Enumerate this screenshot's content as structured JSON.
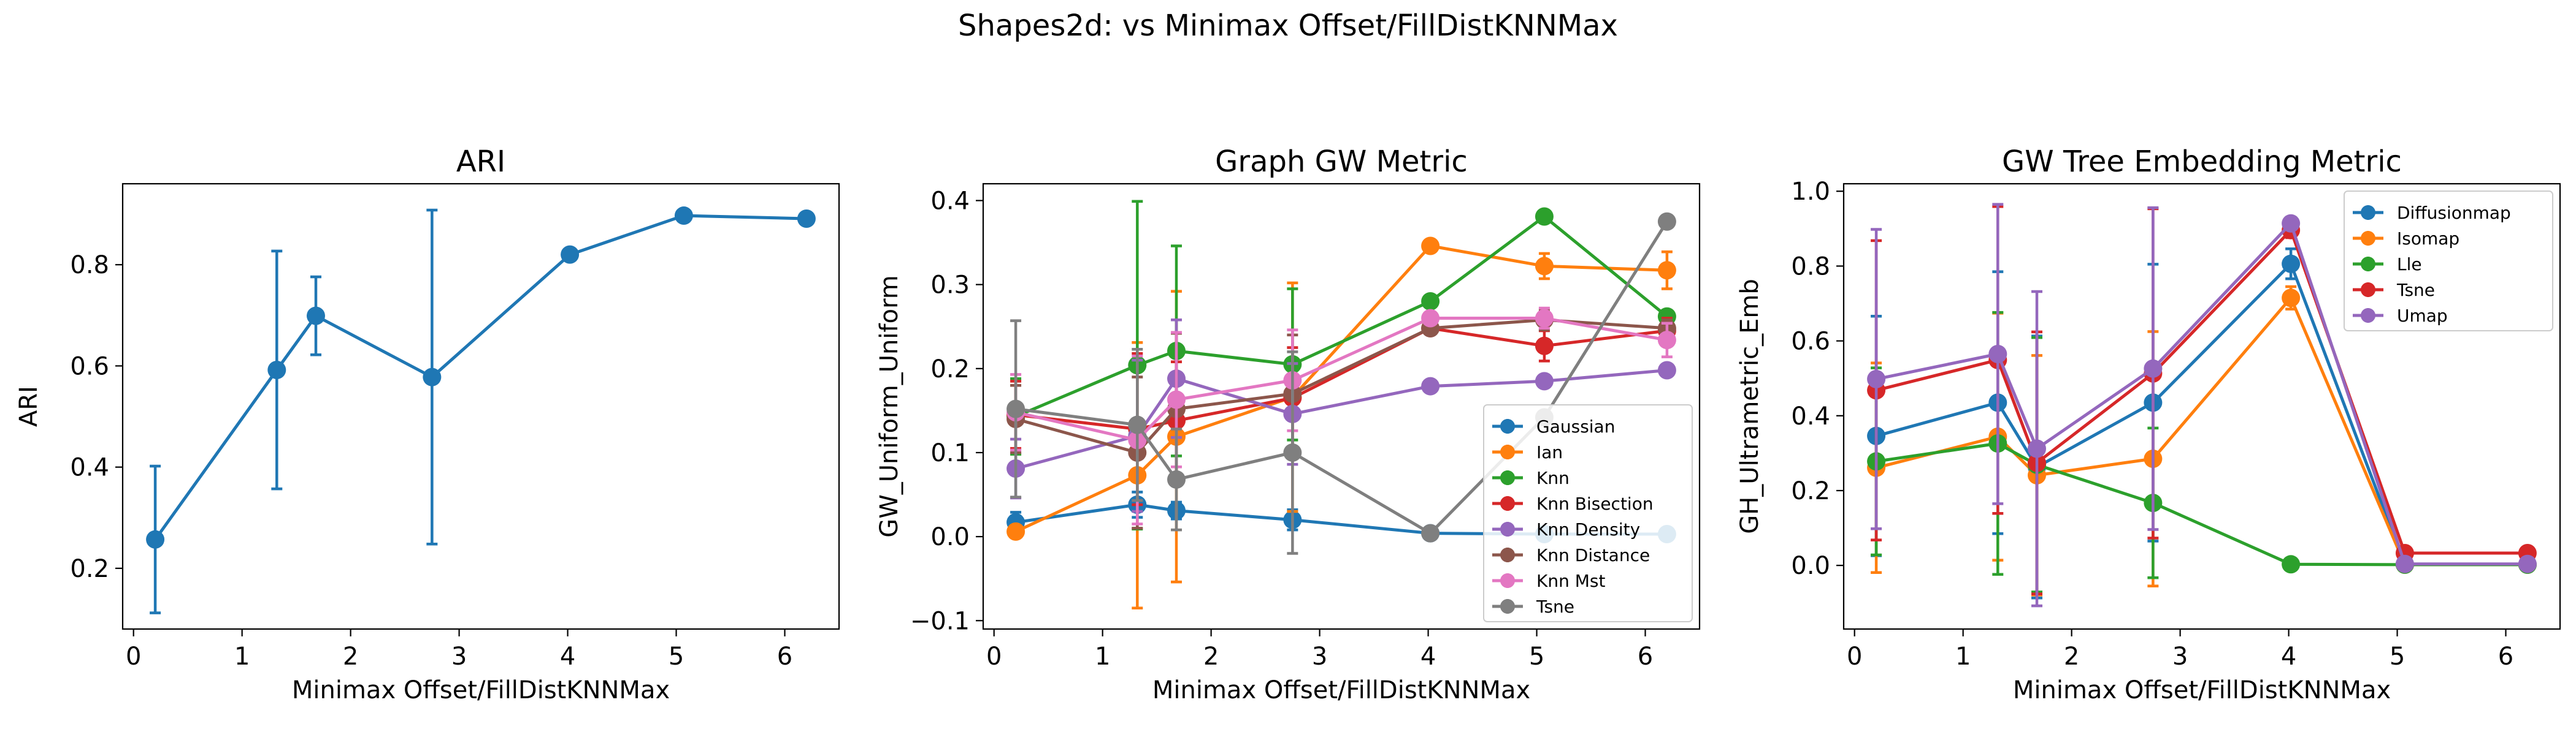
{
  "figure": {
    "title": "Shapes2d: vs Minimax Offset/FillDistKNNMax"
  },
  "chart_data": [
    {
      "type": "line",
      "title": "ARI",
      "xlabel": "Minimax Offset/FillDistKNNMax",
      "ylabel": "ARI",
      "xlim": [
        -0.1,
        6.5
      ],
      "ylim": [
        0.08,
        0.96
      ],
      "xticks": [
        0,
        1,
        2,
        3,
        4,
        5,
        6
      ],
      "yticks": [
        0.2,
        0.4,
        0.6,
        0.8
      ],
      "yticklabels": [
        "0.2",
        "0.4",
        "0.6",
        "0.8"
      ],
      "legend": null,
      "series": [
        {
          "color": "#1f77b4",
          "x": [
            0.2,
            1.32,
            1.68,
            2.75,
            4.02,
            5.07,
            6.2
          ],
          "y": [
            0.257,
            0.592,
            0.699,
            0.578,
            0.82,
            0.897,
            0.891
          ],
          "err": [
            0.145,
            0.235,
            0.077,
            0.33,
            0,
            0,
            0
          ]
        }
      ]
    },
    {
      "type": "line",
      "title": "Graph GW Metric",
      "xlabel": "Minimax Offset/FillDistKNNMax",
      "ylabel": "GW_Uniform_Uniform",
      "xlim": [
        -0.1,
        6.5
      ],
      "ylim": [
        -0.11,
        0.42
      ],
      "xticks": [
        0,
        1,
        2,
        3,
        4,
        5,
        6
      ],
      "yticks": [
        -0.1,
        0.0,
        0.1,
        0.2,
        0.3,
        0.4
      ],
      "yticklabels": [
        "−0.1",
        "0.0",
        "0.1",
        "0.2",
        "0.3",
        "0.4"
      ],
      "legend": "lower-right",
      "series": [
        {
          "name": "Gaussian",
          "color": "#1f77b4",
          "x": [
            0.2,
            1.32,
            1.68,
            2.75,
            4.02,
            5.07,
            6.2
          ],
          "y": [
            0.017,
            0.038,
            0.031,
            0.02,
            0.004,
            0.003,
            0.003
          ],
          "err": [
            0.012,
            0.015,
            0.01,
            0.012,
            0,
            0,
            0
          ]
        },
        {
          "name": "Ian",
          "color": "#ff7f0e",
          "x": [
            0.2,
            1.32,
            1.68,
            2.75,
            4.02,
            5.07,
            6.2
          ],
          "y": [
            0.006,
            0.073,
            0.119,
            0.166,
            0.346,
            0.322,
            0.317
          ],
          "err": [
            0.005,
            0.158,
            0.173,
            0.136,
            0,
            0.015,
            0.022
          ]
        },
        {
          "name": "Knn",
          "color": "#2ca02c",
          "x": [
            0.2,
            1.32,
            1.68,
            2.75,
            4.02,
            5.07,
            6.2
          ],
          "y": [
            0.143,
            0.204,
            0.221,
            0.205,
            0.28,
            0.381,
            0.262
          ],
          "err": [
            0.045,
            0.195,
            0.125,
            0.09,
            0,
            0,
            0
          ]
        },
        {
          "name": "Knn Bisection",
          "color": "#d62728",
          "x": [
            0.2,
            1.32,
            1.68,
            2.75,
            4.02,
            5.07,
            6.2
          ],
          "y": [
            0.145,
            0.128,
            0.138,
            0.165,
            0.248,
            0.227,
            0.245
          ],
          "err": [
            0.04,
            0.09,
            0.07,
            0.06,
            0,
            0.018,
            0.015
          ]
        },
        {
          "name": "Knn Density",
          "color": "#9467bd",
          "x": [
            0.2,
            1.32,
            1.68,
            2.75,
            4.02,
            5.07,
            6.2
          ],
          "y": [
            0.081,
            0.12,
            0.188,
            0.146,
            0.179,
            0.185,
            0.198
          ],
          "err": [
            0.035,
            0.09,
            0.07,
            0.06,
            0,
            0,
            0
          ]
        },
        {
          "name": "Knn Distance",
          "color": "#8c564b",
          "x": [
            0.2,
            1.32,
            1.68,
            2.75,
            4.02,
            5.07,
            6.2
          ],
          "y": [
            0.14,
            0.1,
            0.152,
            0.17,
            0.248,
            0.258,
            0.248
          ],
          "err": [
            0.04,
            0.09,
            0.09,
            0.07,
            0,
            0.012,
            0.01
          ]
        },
        {
          "name": "Knn Mst",
          "color": "#e377c2",
          "x": [
            0.2,
            1.32,
            1.68,
            2.75,
            4.02,
            5.07,
            6.2
          ],
          "y": [
            0.148,
            0.115,
            0.163,
            0.186,
            0.26,
            0.26,
            0.234
          ],
          "err": [
            0.045,
            0.1,
            0.08,
            0.06,
            0,
            0.012,
            0.02
          ]
        },
        {
          "name": "Tsne",
          "color": "#7f7f7f",
          "x": [
            0.2,
            1.32,
            1.68,
            2.75,
            4.02,
            5.07,
            6.2
          ],
          "y": [
            0.152,
            0.133,
            0.068,
            0.1,
            0.004,
            0.142,
            0.375
          ],
          "err": [
            0.105,
            0.09,
            0.06,
            0.12,
            0,
            0,
            0
          ]
        }
      ]
    },
    {
      "type": "line",
      "title": "GW Tree Embedding Metric",
      "xlabel": "Minimax Offset/FillDistKNNMax",
      "ylabel": "GH_Ultrametric_Emb",
      "xlim": [
        -0.1,
        6.5
      ],
      "ylim": [
        -0.17,
        1.02
      ],
      "xticks": [
        0,
        1,
        2,
        3,
        4,
        5,
        6
      ],
      "yticks": [
        0.0,
        0.2,
        0.4,
        0.6,
        0.8,
        1.0
      ],
      "yticklabels": [
        "0.0",
        "0.2",
        "0.4",
        "0.6",
        "0.8",
        "1.0"
      ],
      "legend": "upper-right",
      "series": [
        {
          "name": "Diffusionmap",
          "color": "#1f77b4",
          "x": [
            0.2,
            1.32,
            1.68,
            2.75,
            4.02,
            5.07,
            6.2
          ],
          "y": [
            0.346,
            0.435,
            0.263,
            0.435,
            0.806,
            0.002,
            0.002
          ],
          "err": [
            0.32,
            0.35,
            0.35,
            0.37,
            0.04,
            0,
            0
          ]
        },
        {
          "name": "Isomap",
          "color": "#ff7f0e",
          "x": [
            0.2,
            1.32,
            1.68,
            2.75,
            4.02,
            5.07,
            6.2
          ],
          "y": [
            0.261,
            0.344,
            0.241,
            0.285,
            0.715,
            0.002,
            0.002
          ],
          "err": [
            0.28,
            0.33,
            0.32,
            0.34,
            0.03,
            0,
            0
          ]
        },
        {
          "name": "Lle",
          "color": "#2ca02c",
          "x": [
            0.2,
            1.32,
            1.68,
            2.75,
            4.02,
            5.07,
            6.2
          ],
          "y": [
            0.278,
            0.326,
            0.269,
            0.167,
            0.003,
            0.002,
            0.002
          ],
          "err": [
            0.25,
            0.35,
            0.34,
            0.2,
            0,
            0,
            0
          ]
        },
        {
          "name": "Tsne",
          "color": "#d62728",
          "x": [
            0.2,
            1.32,
            1.68,
            2.75,
            4.02,
            5.07,
            6.2
          ],
          "y": [
            0.468,
            0.549,
            0.274,
            0.513,
            0.896,
            0.033,
            0.033
          ],
          "err": [
            0.4,
            0.41,
            0.35,
            0.44,
            0.02,
            0,
            0
          ]
        },
        {
          "name": "Umap",
          "color": "#9467bd",
          "x": [
            0.2,
            1.32,
            1.68,
            2.75,
            4.02,
            5.07,
            6.2
          ],
          "y": [
            0.498,
            0.565,
            0.312,
            0.526,
            0.914,
            0.004,
            0.004
          ],
          "err": [
            0.4,
            0.4,
            0.42,
            0.43,
            0.01,
            0,
            0
          ]
        }
      ]
    }
  ]
}
